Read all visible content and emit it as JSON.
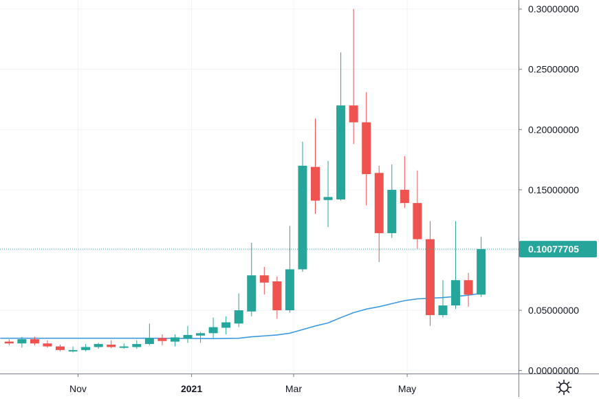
{
  "chart_data": {
    "type": "candlestick",
    "title": "",
    "interval": "weekly",
    "y_ticks": [
      "0.30000000",
      "0.25000000",
      "0.20000000",
      "0.15000000",
      "0.10000000",
      "0.05000000",
      "0.00000000"
    ],
    "y_tick_values": [
      0.3,
      0.25,
      0.2,
      0.15,
      0.1,
      0.05,
      0.0
    ],
    "ylim": [
      -0.0025,
      0.3075
    ],
    "x_labels": [
      {
        "text": "Nov",
        "index": 5.4,
        "bold": false
      },
      {
        "text": "2021",
        "index": 14.3,
        "bold": true
      },
      {
        "text": "Mar",
        "index": 22.3,
        "bold": false
      },
      {
        "text": "May",
        "index": 31.2,
        "bold": false
      }
    ],
    "last_price": 0.10077705,
    "last_price_label": "0.10077705",
    "colors": {
      "up": "#26a69a",
      "down": "#ef5350",
      "ma": "#3d9ae0",
      "grid": "#f0f3fa",
      "axis": "#787b86",
      "price_line": "#26a69a"
    },
    "candles": [
      {
        "o": 0.024,
        "h": 0.026,
        "l": 0.021,
        "c": 0.0225
      },
      {
        "o": 0.0225,
        "h": 0.028,
        "l": 0.019,
        "c": 0.026
      },
      {
        "o": 0.026,
        "h": 0.028,
        "l": 0.021,
        "c": 0.0225
      },
      {
        "o": 0.0225,
        "h": 0.025,
        "l": 0.019,
        "c": 0.02
      },
      {
        "o": 0.02,
        "h": 0.0215,
        "l": 0.016,
        "c": 0.017
      },
      {
        "o": 0.017,
        "h": 0.02,
        "l": 0.015,
        "c": 0.017
      },
      {
        "o": 0.017,
        "h": 0.022,
        "l": 0.016,
        "c": 0.0195
      },
      {
        "o": 0.0195,
        "h": 0.023,
        "l": 0.018,
        "c": 0.022
      },
      {
        "o": 0.0215,
        "h": 0.025,
        "l": 0.0185,
        "c": 0.0195
      },
      {
        "o": 0.02,
        "h": 0.0225,
        "l": 0.018,
        "c": 0.02
      },
      {
        "o": 0.0195,
        "h": 0.025,
        "l": 0.018,
        "c": 0.022
      },
      {
        "o": 0.022,
        "h": 0.039,
        "l": 0.021,
        "c": 0.027
      },
      {
        "o": 0.027,
        "h": 0.03,
        "l": 0.021,
        "c": 0.0245
      },
      {
        "o": 0.024,
        "h": 0.03,
        "l": 0.02,
        "c": 0.0275
      },
      {
        "o": 0.0265,
        "h": 0.037,
        "l": 0.023,
        "c": 0.0295
      },
      {
        "o": 0.029,
        "h": 0.032,
        "l": 0.023,
        "c": 0.031
      },
      {
        "o": 0.031,
        "h": 0.044,
        "l": 0.027,
        "c": 0.036
      },
      {
        "o": 0.0355,
        "h": 0.045,
        "l": 0.03,
        "c": 0.04
      },
      {
        "o": 0.039,
        "h": 0.064,
        "l": 0.036,
        "c": 0.05
      },
      {
        "o": 0.049,
        "h": 0.106,
        "l": 0.045,
        "c": 0.079
      },
      {
        "o": 0.079,
        "h": 0.086,
        "l": 0.063,
        "c": 0.073
      },
      {
        "o": 0.074,
        "h": 0.078,
        "l": 0.043,
        "c": 0.05
      },
      {
        "o": 0.05,
        "h": 0.12,
        "l": 0.048,
        "c": 0.084
      },
      {
        "o": 0.084,
        "h": 0.19,
        "l": 0.082,
        "c": 0.17
      },
      {
        "o": 0.169,
        "h": 0.209,
        "l": 0.13,
        "c": 0.141
      },
      {
        "o": 0.1415,
        "h": 0.174,
        "l": 0.119,
        "c": 0.144
      },
      {
        "o": 0.142,
        "h": 0.264,
        "l": 0.141,
        "c": 0.22
      },
      {
        "o": 0.22,
        "h": 0.3,
        "l": 0.188,
        "c": 0.206
      },
      {
        "o": 0.206,
        "h": 0.231,
        "l": 0.137,
        "c": 0.163
      },
      {
        "o": 0.164,
        "h": 0.17,
        "l": 0.09,
        "c": 0.114
      },
      {
        "o": 0.114,
        "h": 0.171,
        "l": 0.11,
        "c": 0.15
      },
      {
        "o": 0.15,
        "h": 0.178,
        "l": 0.135,
        "c": 0.139
      },
      {
        "o": 0.139,
        "h": 0.166,
        "l": 0.101,
        "c": 0.109
      },
      {
        "o": 0.109,
        "h": 0.124,
        "l": 0.037,
        "c": 0.046
      },
      {
        "o": 0.046,
        "h": 0.075,
        "l": 0.044,
        "c": 0.054
      },
      {
        "o": 0.054,
        "h": 0.124,
        "l": 0.051,
        "c": 0.075
      },
      {
        "o": 0.075,
        "h": 0.081,
        "l": 0.053,
        "c": 0.063
      },
      {
        "o": 0.063,
        "h": 0.111,
        "l": 0.061,
        "c": 0.1008
      }
    ],
    "moving_average": [
      {
        "i": -0.7,
        "v": 0.0268
      },
      {
        "i": 2,
        "v": 0.0268
      },
      {
        "i": 5,
        "v": 0.0268
      },
      {
        "i": 8,
        "v": 0.0268
      },
      {
        "i": 11,
        "v": 0.0268
      },
      {
        "i": 14,
        "v": 0.0267
      },
      {
        "i": 16,
        "v": 0.0265
      },
      {
        "i": 18,
        "v": 0.0268
      },
      {
        "i": 19,
        "v": 0.028
      },
      {
        "i": 21,
        "v": 0.0295
      },
      {
        "i": 22,
        "v": 0.031
      },
      {
        "i": 23,
        "v": 0.034
      },
      {
        "i": 24,
        "v": 0.037
      },
      {
        "i": 25,
        "v": 0.0395
      },
      {
        "i": 26,
        "v": 0.044
      },
      {
        "i": 27,
        "v": 0.048
      },
      {
        "i": 28,
        "v": 0.051
      },
      {
        "i": 29,
        "v": 0.053
      },
      {
        "i": 30,
        "v": 0.0555
      },
      {
        "i": 31,
        "v": 0.058
      },
      {
        "i": 32,
        "v": 0.0595
      },
      {
        "i": 33,
        "v": 0.06
      },
      {
        "i": 34,
        "v": 0.0605
      },
      {
        "i": 35,
        "v": 0.0615
      },
      {
        "i": 36,
        "v": 0.0625
      },
      {
        "i": 37,
        "v": 0.064
      }
    ]
  },
  "icons": {
    "settings": "settings-gear-icon"
  }
}
